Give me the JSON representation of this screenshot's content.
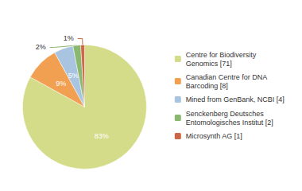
{
  "chart_data": {
    "type": "pie",
    "categories": [
      "Centre for Biodiversity\nGenomics [71]",
      "Canadian Centre for DNA\nBarcoding [8]",
      "Mined from GenBank, NCBI [4]",
      "Senckenberg Deutsches\nEntomologisches Institut [2]",
      "Microsynth AG [1]"
    ],
    "values": [
      83,
      9,
      5,
      2,
      1
    ],
    "value_labels": [
      "83%",
      "9%",
      "5%",
      "2%",
      "1%"
    ],
    "colors": [
      "#d4dc8a",
      "#f0a050",
      "#a8c4e0",
      "#8ab870",
      "#cc6644"
    ],
    "data_labels": true,
    "legend": "right"
  }
}
